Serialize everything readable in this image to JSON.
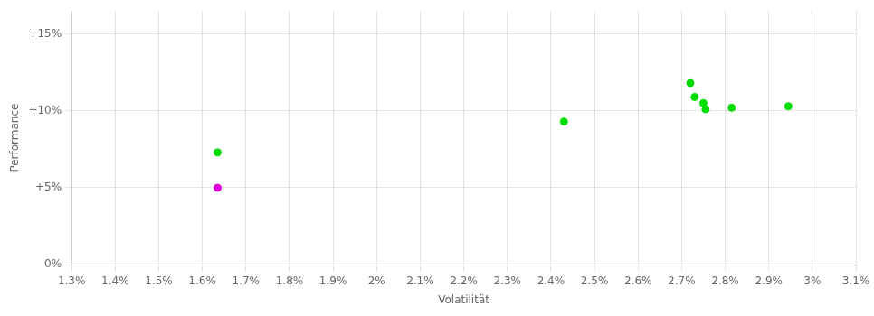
{
  "chart_data": {
    "type": "scatter",
    "xlabel": "Volatilität",
    "ylabel": "Performance",
    "xlim": [
      0.013,
      0.031
    ],
    "ylim": [
      0.0,
      0.165
    ],
    "xticks": [
      {
        "value": 0.013,
        "label": "1.3%"
      },
      {
        "value": 0.014,
        "label": "1.4%"
      },
      {
        "value": 0.015,
        "label": "1.5%"
      },
      {
        "value": 0.016,
        "label": "1.6%"
      },
      {
        "value": 0.017,
        "label": "1.7%"
      },
      {
        "value": 0.018,
        "label": "1.8%"
      },
      {
        "value": 0.019,
        "label": "1.9%"
      },
      {
        "value": 0.02,
        "label": "2%"
      },
      {
        "value": 0.021,
        "label": "2.1%"
      },
      {
        "value": 0.022,
        "label": "2.2%"
      },
      {
        "value": 0.023,
        "label": "2.3%"
      },
      {
        "value": 0.024,
        "label": "2.4%"
      },
      {
        "value": 0.025,
        "label": "2.5%"
      },
      {
        "value": 0.026,
        "label": "2.6%"
      },
      {
        "value": 0.027,
        "label": "2.7%"
      },
      {
        "value": 0.028,
        "label": "2.8%"
      },
      {
        "value": 0.029,
        "label": "2.9%"
      },
      {
        "value": 0.03,
        "label": "3%"
      },
      {
        "value": 0.031,
        "label": "3.1%"
      }
    ],
    "yticks": [
      {
        "value": 0.0,
        "label": "0%"
      },
      {
        "value": 0.05,
        "label": "+5%"
      },
      {
        "value": 0.1,
        "label": "+10%"
      },
      {
        "value": 0.15,
        "label": "+15%"
      }
    ],
    "grid": true,
    "marker": "circle",
    "series": [
      {
        "color": "#00dd00",
        "x": [
          0.01635,
          0.0243,
          0.0272,
          0.0273,
          0.0275,
          0.02755,
          0.02815,
          0.02945
        ],
        "values": [
          0.073,
          0.093,
          0.118,
          0.109,
          0.105,
          0.101,
          0.102,
          0.103
        ]
      },
      {
        "color": "#dd00dd",
        "x": [
          0.01635
        ],
        "values": [
          0.05
        ]
      }
    ]
  }
}
